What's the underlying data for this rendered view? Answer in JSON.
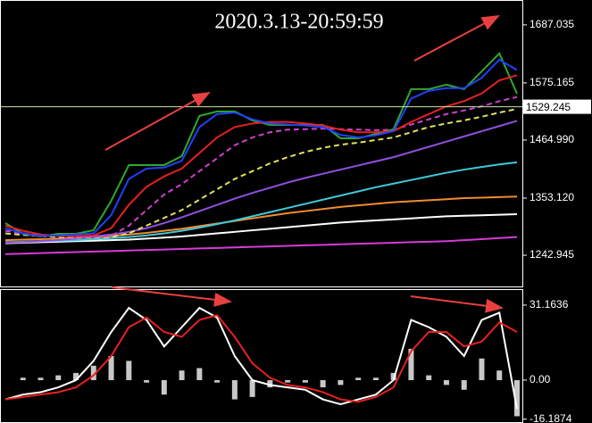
{
  "title": "2020.3.13-20:59:59",
  "chart_data": [
    {
      "type": "line",
      "ylim": [
        1181,
        1735
      ],
      "yticks": [
        1687.035,
        1575.165,
        {
          "value": 1464.99,
          "label": "1464.990"
        },
        {
          "value": 1353.12,
          "label": "1353.120"
        },
        1242.945
      ],
      "current_price": 1529.245,
      "current_price_color": "#c8e6a0",
      "series": [
        {
          "color": "#ffffff",
          "dash": false,
          "values": [
            1266,
            1267,
            1268,
            1269,
            1270,
            1271,
            1272,
            1273,
            1275,
            1277,
            1279,
            1282,
            1285,
            1288,
            1291,
            1294,
            1297,
            1300,
            1303,
            1306,
            1308,
            1310,
            1312,
            1314,
            1316,
            1318,
            1319,
            1320,
            1321,
            1322
          ]
        },
        {
          "color": "#d63bd6",
          "dash": false,
          "values": [
            1245,
            1246,
            1247,
            1248,
            1249,
            1250,
            1251,
            1252,
            1253,
            1254,
            1255,
            1256,
            1257,
            1258,
            1259,
            1260,
            1261,
            1262,
            1263,
            1264,
            1265,
            1266,
            1267,
            1268,
            1269,
            1270,
            1272,
            1274,
            1276,
            1278
          ]
        },
        {
          "color": "#f08c30",
          "dash": false,
          "values": [
            1272,
            1273,
            1274,
            1275,
            1276,
            1278,
            1280,
            1283,
            1286,
            1290,
            1294,
            1299,
            1304,
            1309,
            1314,
            1319,
            1324,
            1328,
            1332,
            1336,
            1339,
            1342,
            1345,
            1347,
            1349,
            1351,
            1353,
            1354,
            1355,
            1356
          ]
        },
        {
          "color": "#40c8d8",
          "dash": false,
          "values": [
            1268,
            1269,
            1270,
            1271,
            1272,
            1274,
            1276,
            1278,
            1281,
            1285,
            1290,
            1296,
            1303,
            1310,
            1318,
            1326,
            1334,
            1342,
            1350,
            1358,
            1366,
            1374,
            1381,
            1388,
            1395,
            1402,
            1408,
            1413,
            1418,
            1422
          ]
        },
        {
          "color": "#9050e0",
          "dash": false,
          "values": [
            1267,
            1268,
            1270,
            1272,
            1275,
            1279,
            1283,
            1288,
            1295,
            1305,
            1316,
            1328,
            1340,
            1352,
            1363,
            1373,
            1383,
            1392,
            1400,
            1408,
            1416,
            1424,
            1432,
            1442,
            1452,
            1462,
            1472,
            1482,
            1492,
            1502
          ]
        },
        {
          "color": "#e0e060",
          "dash": true,
          "values": [
            1285,
            1282,
            1280,
            1278,
            1277,
            1277,
            1278,
            1285,
            1300,
            1315,
            1330,
            1350,
            1370,
            1390,
            1405,
            1420,
            1432,
            1442,
            1450,
            1456,
            1460,
            1465,
            1470,
            1480,
            1490,
            1497,
            1503,
            1510,
            1518,
            1525
          ]
        },
        {
          "color": "#d040d0",
          "dash": true,
          "values": [
            1290,
            1285,
            1282,
            1280,
            1278,
            1278,
            1280,
            1300,
            1330,
            1360,
            1380,
            1405,
            1430,
            1455,
            1470,
            1480,
            1485,
            1486,
            1487,
            1486,
            1485,
            1484,
            1485,
            1495,
            1505,
            1515,
            1522,
            1530,
            1540,
            1548
          ]
        },
        {
          "color": "#2ea82e",
          "dash": false,
          "values": [
            1304.9,
            1284.2,
            1279.1,
            1284.2,
            1284.2,
            1291.1,
            1347.9,
            1416.8,
            1416.8,
            1416.8,
            1434.0,
            1511.5,
            1520.1,
            1520.1,
            1502.9,
            1494.2,
            1494.2,
            1494.2,
            1494.2,
            1468.4,
            1468.4,
            1477.0,
            1485.6,
            1563.1,
            1563.1,
            1571.7,
            1563.1,
            1597.5,
            1632.0,
            1554.5
          ]
        },
        {
          "color": "#e82020",
          "dash": false,
          "values": [
            1300,
            1290,
            1283,
            1280,
            1280,
            1281,
            1295,
            1340,
            1375,
            1395,
            1410,
            1440,
            1470,
            1490,
            1497,
            1500,
            1500,
            1497,
            1493,
            1485,
            1480,
            1480,
            1482,
            1500,
            1515,
            1530,
            1540,
            1555,
            1580,
            1590
          ]
        },
        {
          "color": "#2040ff",
          "dash": false,
          "values": [
            1295,
            1285,
            1280,
            1281,
            1283,
            1285,
            1320,
            1390,
            1410,
            1412,
            1425,
            1490,
            1515,
            1518,
            1505,
            1497,
            1495,
            1493,
            1490,
            1475,
            1470,
            1474,
            1482,
            1545,
            1560,
            1565,
            1565,
            1585,
            1620,
            1600
          ]
        }
      ]
    },
    {
      "type": "combo",
      "ylim": [
        -17.8,
        37.8
      ],
      "yticks": [
        31.1636,
        {
          "value": 0,
          "label": "0.00"
        },
        -16.1874
      ],
      "series": [
        {
          "type": "bar",
          "color": "#c8c8c8",
          "values": [
            0,
            1,
            1,
            2,
            3,
            6,
            10,
            8,
            -1,
            -6,
            4,
            5,
            -1,
            -8,
            -7,
            -3,
            -1,
            -1,
            -3,
            -2,
            1,
            1,
            3,
            13,
            2,
            -2,
            -4,
            9,
            4,
            -15
          ]
        },
        {
          "type": "line",
          "color": "#ffffff",
          "values": [
            -8,
            -6,
            -5,
            -3,
            0,
            8,
            20,
            30,
            25,
            14,
            22,
            30,
            26,
            10,
            0,
            -2,
            -3,
            -4,
            -8,
            -10,
            -8,
            -6,
            0,
            25,
            22,
            18,
            10,
            25,
            28,
            -12
          ]
        },
        {
          "type": "line",
          "color": "#e82020",
          "values": [
            -8,
            -7,
            -6,
            -5,
            -3,
            2,
            10,
            22,
            26,
            20,
            18,
            25,
            27,
            18,
            7,
            1,
            -2,
            -3,
            -5,
            -8,
            -9,
            -7,
            -3,
            12,
            20,
            20,
            14,
            16,
            24,
            20
          ]
        }
      ]
    }
  ]
}
